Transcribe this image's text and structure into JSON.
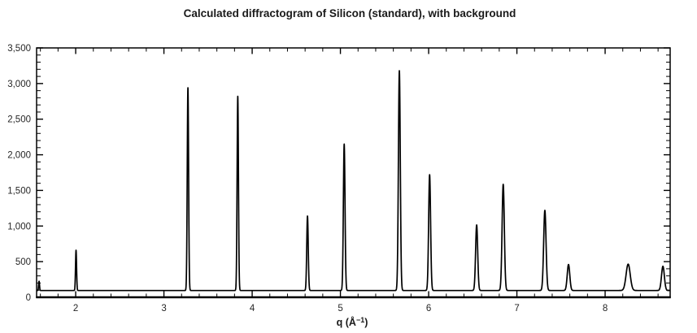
{
  "chart_data": {
    "type": "line",
    "title": "Calculated diffractogram of Silicon (standard), with background",
    "xlabel": "q (Å⁻¹)",
    "xlabel_parts": {
      "prefix": "q (Å",
      "superscript": "−1",
      "suffix": ")"
    },
    "ylabel": "",
    "xlim": [
      1.557,
      8.737
    ],
    "ylim": [
      0,
      3500
    ],
    "x_major_ticks": [
      2,
      3,
      4,
      5,
      6,
      7,
      8
    ],
    "x_major_tick_labels": [
      "2",
      "3",
      "4",
      "5",
      "6",
      "7",
      "8"
    ],
    "x_minor_tick_step": 0.2,
    "y_major_ticks": [
      0,
      500,
      1000,
      1500,
      2000,
      2500,
      3000,
      3500
    ],
    "y_major_tick_labels": [
      "0",
      "500",
      "1,000",
      "1,500",
      "2,000",
      "2,500",
      "3,000",
      "3,500"
    ],
    "y_minor_tick_step": 100,
    "grid": false,
    "legend": null,
    "ticks_mirrored_top_right": true,
    "line_color": "#000000",
    "axis_color": "#000000",
    "text_color": "#262626",
    "background_level": 95,
    "peaks": [
      {
        "q": 1.585,
        "top": 225,
        "fwhm": 0.012
      },
      {
        "q": 2.004,
        "top": 660,
        "fwhm": 0.014
      },
      {
        "q": 3.272,
        "top": 2940,
        "fwhm": 0.018
      },
      {
        "q": 3.837,
        "top": 2820,
        "fwhm": 0.018
      },
      {
        "q": 4.627,
        "top": 1140,
        "fwhm": 0.02
      },
      {
        "q": 5.043,
        "top": 2150,
        "fwhm": 0.022
      },
      {
        "q": 5.668,
        "top": 3180,
        "fwhm": 0.025
      },
      {
        "q": 6.011,
        "top": 1720,
        "fwhm": 0.026
      },
      {
        "q": 6.544,
        "top": 1015,
        "fwhm": 0.028
      },
      {
        "q": 6.845,
        "top": 1585,
        "fwhm": 0.03
      },
      {
        "q": 7.317,
        "top": 1220,
        "fwhm": 0.032
      },
      {
        "q": 7.585,
        "top": 460,
        "fwhm": 0.034
      },
      {
        "q": 8.261,
        "top": 465,
        "fwhm": 0.055
      },
      {
        "q": 8.655,
        "top": 435,
        "fwhm": 0.038
      }
    ]
  }
}
